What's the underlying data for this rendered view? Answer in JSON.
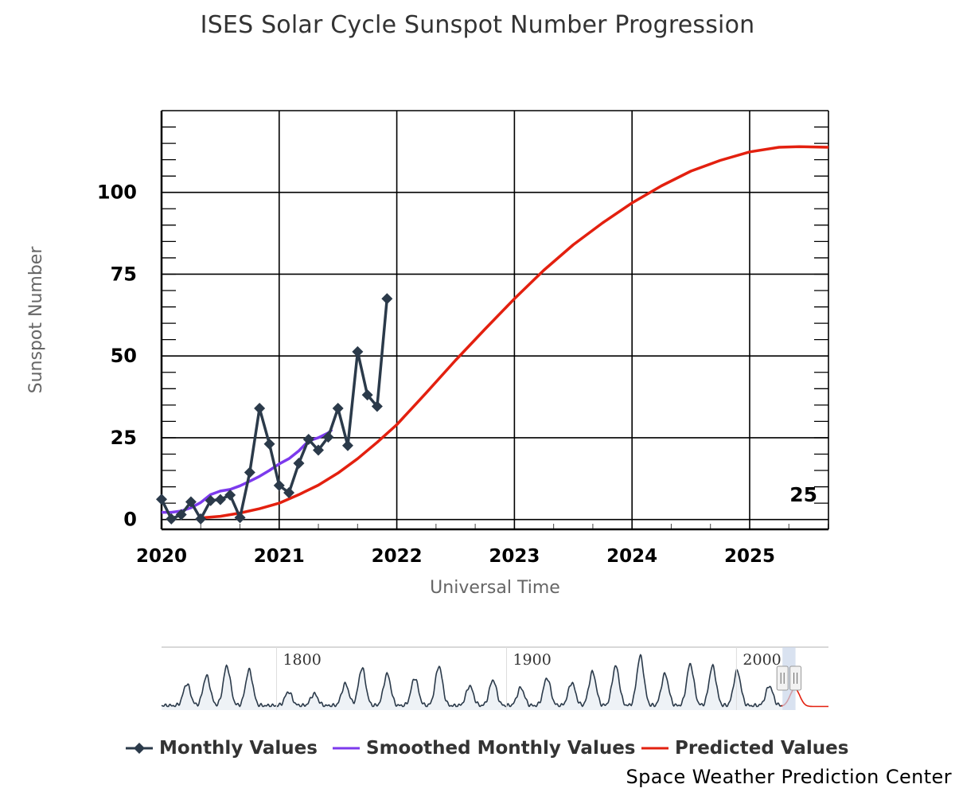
{
  "title": "ISES Solar Cycle Sunspot Number Progression",
  "credits": "Space Weather Prediction Center",
  "colors": {
    "monthly": "#2b3a4a",
    "smoothed": "#7c3aed",
    "predicted": "#e3200f",
    "grid": "#000000",
    "navigator_line": "#2b3a4a",
    "navigator_fill": "#eef2f6",
    "navigator_mask": "#c9d6ea"
  },
  "chart_data": {
    "type": "line",
    "title": "ISES Solar Cycle Sunspot Number Progression",
    "xlabel": "Universal Time",
    "ylabel": "Sunspot Number",
    "xlim": [
      2020.0,
      2025.67
    ],
    "ylim": [
      -3,
      125
    ],
    "x_ticks": [
      "2020",
      "2021",
      "2022",
      "2023",
      "2024",
      "2025"
    ],
    "y_ticks": [
      "0",
      "25",
      "50",
      "75",
      "100"
    ],
    "grid": true,
    "legend_position": "bottom",
    "annotations": [
      {
        "text": "25",
        "x": 2025.5,
        "y": 10
      }
    ],
    "series": [
      {
        "name": "Monthly Values",
        "marker": "diamond",
        "points": [
          [
            2020.0,
            6.2
          ],
          [
            2020.083,
            0.2
          ],
          [
            2020.167,
            1.5
          ],
          [
            2020.25,
            5.4
          ],
          [
            2020.333,
            0.2
          ],
          [
            2020.417,
            5.8
          ],
          [
            2020.5,
            6.1
          ],
          [
            2020.583,
            7.5
          ],
          [
            2020.667,
            0.6
          ],
          [
            2020.75,
            14.4
          ],
          [
            2020.833,
            34.0
          ],
          [
            2020.917,
            23.1
          ],
          [
            2021.0,
            10.4
          ],
          [
            2021.083,
            8.2
          ],
          [
            2021.167,
            17.2
          ],
          [
            2021.25,
            24.5
          ],
          [
            2021.333,
            21.2
          ],
          [
            2021.417,
            25.2
          ],
          [
            2021.5,
            34.0
          ],
          [
            2021.583,
            22.6
          ],
          [
            2021.667,
            51.3
          ],
          [
            2021.75,
            38.1
          ],
          [
            2021.833,
            34.6
          ],
          [
            2021.917,
            67.5
          ]
        ]
      },
      {
        "name": "Smoothed Monthly Values",
        "points": [
          [
            2020.0,
            2.2
          ],
          [
            2020.083,
            2.2
          ],
          [
            2020.167,
            2.6
          ],
          [
            2020.25,
            3.6
          ],
          [
            2020.333,
            5.2
          ],
          [
            2020.417,
            7.6
          ],
          [
            2020.5,
            8.7
          ],
          [
            2020.583,
            9.2
          ],
          [
            2020.667,
            10.3
          ],
          [
            2020.75,
            11.7
          ],
          [
            2020.833,
            13.2
          ],
          [
            2020.917,
            15.0
          ],
          [
            2021.0,
            17.0
          ],
          [
            2021.083,
            18.6
          ],
          [
            2021.167,
            21.0
          ],
          [
            2021.25,
            24.0
          ],
          [
            2021.333,
            25.0
          ],
          [
            2021.417,
            26.5
          ],
          [
            2021.45,
            27.5
          ]
        ]
      },
      {
        "name": "Predicted Values",
        "points": [
          [
            2020.333,
            0.5
          ],
          [
            2020.5,
            1.0
          ],
          [
            2020.667,
            2.0
          ],
          [
            2020.833,
            3.3
          ],
          [
            2021.0,
            5.0
          ],
          [
            2021.167,
            7.6
          ],
          [
            2021.333,
            10.5
          ],
          [
            2021.5,
            14.2
          ],
          [
            2021.667,
            18.6
          ],
          [
            2021.833,
            23.6
          ],
          [
            2022.0,
            29.0
          ],
          [
            2022.25,
            38.7
          ],
          [
            2022.5,
            48.7
          ],
          [
            2022.75,
            58.2
          ],
          [
            2023.0,
            67.5
          ],
          [
            2023.25,
            76.2
          ],
          [
            2023.5,
            84.0
          ],
          [
            2023.75,
            90.7
          ],
          [
            2024.0,
            96.8
          ],
          [
            2024.25,
            102.0
          ],
          [
            2024.5,
            106.5
          ],
          [
            2024.75,
            109.8
          ],
          [
            2025.0,
            112.4
          ],
          [
            2025.25,
            113.8
          ],
          [
            2025.42,
            114.0
          ],
          [
            2025.67,
            113.8
          ]
        ]
      }
    ],
    "navigator": {
      "x_labels": [
        "1800",
        "1900",
        "2000"
      ],
      "xlim": [
        1750,
        2040
      ],
      "selected_range": [
        2020.0,
        2025.67
      ]
    }
  },
  "legend": [
    {
      "name": "Monthly Values",
      "color_key": "monthly",
      "marker": "diamond"
    },
    {
      "name": "Smoothed Monthly Values",
      "color_key": "smoothed",
      "marker": "none"
    },
    {
      "name": "Predicted Values",
      "color_key": "predicted",
      "marker": "none"
    }
  ]
}
